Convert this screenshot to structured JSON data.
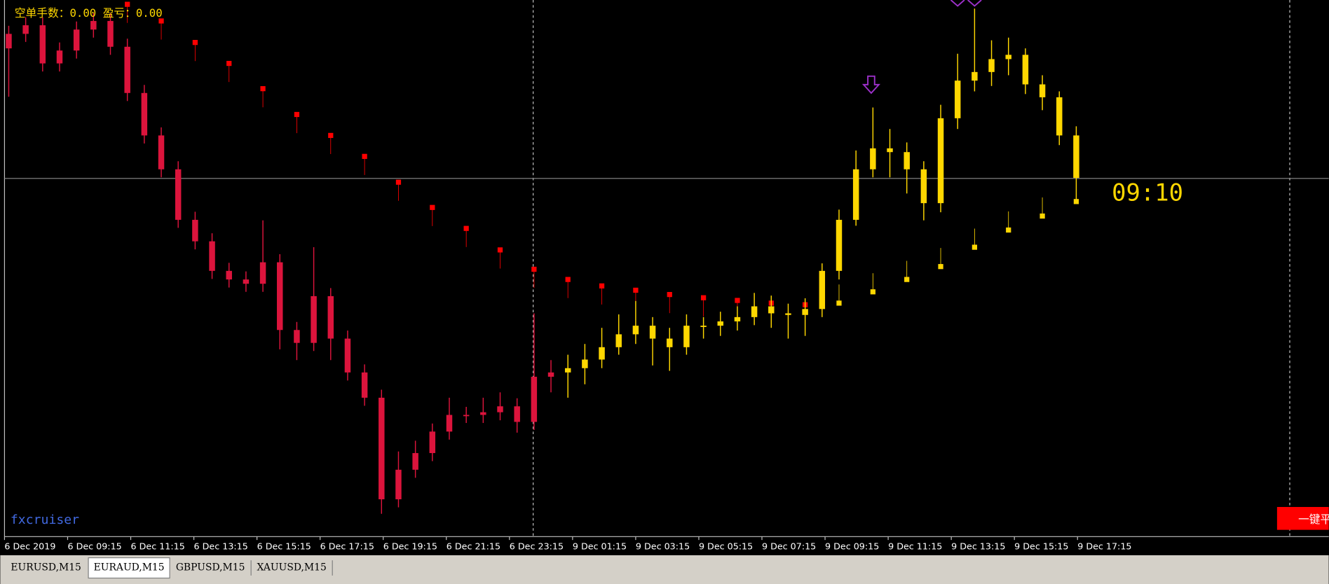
{
  "header": {
    "status": "空单手数：0.00  盈亏：0.00"
  },
  "chart": {
    "type": "candlestick",
    "ylim": [
      0,
      100
    ],
    "open": [
      91.0,
      93.7,
      95.3,
      88.2,
      90.6,
      94.5,
      96.1,
      91.3,
      82.7,
      74.8,
      68.5,
      59.1,
      55.1,
      49.6,
      48.0,
      47.2,
      51.2,
      38.6,
      36.2,
      44.9,
      37.0,
      30.7,
      26.0,
      7.1,
      12.6,
      15.7,
      19.7,
      22.8,
      22.8,
      23.3,
      24.4,
      21.5,
      29.9,
      30.7,
      31.5,
      33.1,
      35.4,
      37.8,
      39.4,
      37.0,
      35.4,
      39.4,
      39.4,
      40.2,
      41.0,
      43.0,
      41.7,
      41.4,
      42.5,
      49.6,
      59.1,
      68.5,
      72.4,
      71.7,
      68.5,
      62.2,
      78.0,
      85.0,
      86.6,
      89.0,
      89.8,
      84.3,
      81.9,
      74.8
    ],
    "high": [
      95.2,
      96.8,
      96.8,
      92.1,
      96.0,
      97.6,
      97.6,
      92.8,
      84.2,
      76.3,
      70.0,
      60.6,
      56.6,
      51.1,
      49.5,
      59.0,
      52.7,
      40.1,
      54.0,
      46.4,
      38.5,
      32.2,
      27.5,
      16.0,
      18.0,
      21.2,
      26.0,
      24.3,
      26.0,
      27.0,
      25.9,
      41.7,
      33.0,
      34.0,
      36.0,
      39.0,
      41.5,
      44.0,
      41.0,
      39.0,
      41.5,
      41.0,
      42.0,
      43.0,
      45.5,
      45.0,
      43.5,
      44.5,
      51.0,
      61.0,
      72.0,
      80.0,
      76.0,
      73.5,
      70.0,
      80.5,
      90.0,
      98.4,
      92.5,
      93.0,
      91.0,
      86.0,
      83.0,
      76.5
    ],
    "low": [
      82.0,
      92.2,
      86.7,
      86.7,
      89.1,
      93.0,
      89.8,
      81.2,
      73.3,
      67.0,
      57.6,
      53.6,
      48.1,
      46.5,
      45.7,
      45.7,
      35.0,
      33.0,
      34.7,
      33.0,
      29.2,
      24.5,
      4.4,
      5.6,
      11.1,
      14.2,
      18.2,
      21.3,
      21.3,
      21.8,
      19.5,
      20.0,
      27.0,
      26.0,
      28.5,
      31.5,
      34.0,
      36.0,
      32.0,
      31.0,
      34.0,
      37.0,
      37.5,
      38.5,
      39.5,
      39.0,
      37.0,
      37.5,
      41.0,
      48.0,
      58.0,
      67.0,
      67.0,
      64.0,
      59.0,
      60.5,
      76.0,
      83.0,
      84.0,
      86.0,
      82.5,
      79.5,
      73.0,
      62.5
    ],
    "close": [
      93.7,
      95.3,
      88.2,
      90.6,
      94.5,
      96.1,
      91.3,
      82.7,
      74.8,
      68.5,
      59.1,
      55.1,
      49.6,
      48.0,
      47.2,
      51.2,
      38.6,
      36.2,
      44.9,
      37.0,
      30.7,
      26.0,
      7.1,
      12.6,
      15.7,
      19.7,
      22.8,
      22.8,
      23.3,
      24.4,
      21.5,
      29.9,
      30.7,
      31.5,
      33.1,
      35.4,
      37.8,
      39.4,
      37.0,
      35.4,
      39.4,
      39.4,
      40.2,
      41.0,
      43.0,
      41.7,
      41.4,
      42.5,
      49.6,
      59.1,
      68.5,
      72.4,
      71.7,
      68.5,
      62.2,
      78.0,
      85.0,
      86.6,
      89.0,
      89.8,
      84.3,
      81.9,
      74.8,
      66.9
    ],
    "candle_colors": [
      "#dc143c",
      "#dc143c",
      "#dc143c",
      "#dc143c",
      "#dc143c",
      "#dc143c",
      "#dc143c",
      "#dc143c",
      "#dc143c",
      "#dc143c",
      "#dc143c",
      "#dc143c",
      "#dc143c",
      "#dc143c",
      "#dc143c",
      "#dc143c",
      "#dc143c",
      "#dc143c",
      "#dc143c",
      "#dc143c",
      "#dc143c",
      "#dc143c",
      "#dc143c",
      "#dc143c",
      "#dc143c",
      "#dc143c",
      "#dc143c",
      "#dc143c",
      "#dc143c",
      "#dc143c",
      "#dc143c",
      "#dc143c",
      "#dc143c",
      "#ffd700",
      "#ffd700",
      "#ffd700",
      "#ffd700",
      "#ffd700",
      "#ffd700",
      "#ffd700",
      "#ffd700",
      "#ffd700",
      "#ffd700",
      "#ffd700",
      "#ffd700",
      "#ffd700",
      "#ffd700",
      "#ffd700",
      "#ffd700",
      "#ffd700",
      "#ffd700",
      "#ffd700",
      "#ffd700",
      "#ffd700",
      "#ffd700",
      "#ffd700",
      "#ffd700",
      "#ffd700",
      "#ffd700",
      "#ffd700",
      "#ffd700",
      "#ffd700",
      "#ffd700",
      "#ffd700"
    ],
    "indicator": [
      {
        "color": "#ff0000",
        "values": [
          null,
          null,
          null,
          null,
          null,
          null,
          null,
          99.2,
          null,
          96.1,
          null,
          92.1,
          null,
          88.2,
          null,
          83.5,
          null,
          78.7,
          null,
          74.8,
          null,
          70.9,
          null,
          66.1,
          null,
          61.4,
          null,
          57.5,
          null,
          53.5,
          null,
          49.9,
          null,
          48.0,
          null,
          46.8,
          null,
          46.0,
          null,
          45.2,
          null,
          44.6,
          null,
          44.1,
          null,
          43.6,
          null,
          43.3,
          null,
          null,
          null,
          null,
          null,
          null,
          null,
          null,
          null,
          null,
          null,
          null,
          null,
          null,
          null,
          null
        ]
      },
      {
        "color": "#ffd700",
        "values": [
          null,
          null,
          null,
          null,
          null,
          null,
          null,
          null,
          null,
          null,
          null,
          null,
          null,
          null,
          null,
          null,
          null,
          null,
          null,
          null,
          null,
          null,
          null,
          null,
          null,
          null,
          null,
          null,
          null,
          null,
          null,
          null,
          null,
          null,
          null,
          null,
          null,
          null,
          null,
          null,
          null,
          null,
          null,
          null,
          null,
          null,
          null,
          null,
          null,
          43.6,
          null,
          45.7,
          null,
          48.0,
          null,
          50.4,
          null,
          54.0,
          null,
          57.2,
          null,
          59.8,
          null,
          62.5
        ]
      }
    ],
    "hline": 66.8,
    "x_labels": [
      "6 Dec 2019",
      "6 Dec 09:15",
      "6 Dec 11:15",
      "6 Dec 13:15",
      "6 Dec 15:15",
      "6 Dec 17:15",
      "6 Dec 19:15",
      "6 Dec 21:15",
      "6 Dec 23:15",
      "9 Dec 01:15",
      "9 Dec 03:15",
      "9 Dec 05:15",
      "9 Dec 07:15",
      "9 Dec 09:15",
      "9 Dec 11:15",
      "9 Dec 13:15",
      "9 Dec 15:15",
      "9 Dec 17:15"
    ],
    "clock": "09:10",
    "watermark": "fxcruiser"
  },
  "button": "一键平",
  "tabs": [
    "EURUSD,M15",
    "EURAUD,M15",
    "GBPUSD,M15",
    "XAUUSD,M15"
  ],
  "active_tab": 1
}
